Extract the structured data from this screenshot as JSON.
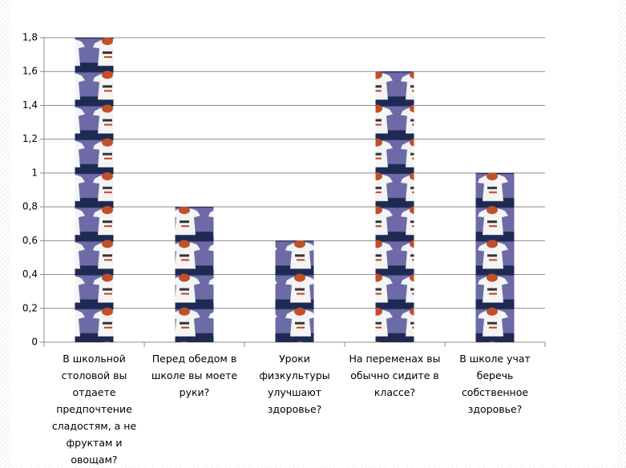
{
  "chart_data": {
    "type": "bar",
    "categories": [
      "В школьной столовой вы отдаете предпочтение сладостям, а не фруктам и овощам?",
      "Перед обедом в школе вы моете руки?",
      "Уроки физкультуры улучшают здоровье?",
      "На переменах вы обычно сидите в классе?",
      "В школе учат беречь собственное здоровье?"
    ],
    "values": [
      1.8,
      0.8,
      0.6,
      1.6,
      1
    ],
    "ylim": [
      0,
      1.8
    ],
    "yticks": [
      0,
      {
        "value": 0.2,
        "label": "0,2"
      },
      {
        "value": 0.4,
        "label": "0,4"
      },
      {
        "value": 0.6,
        "label": "0,6"
      },
      {
        "value": 0.8,
        "label": "0,8"
      },
      1,
      {
        "value": 1.2,
        "label": "1,2"
      },
      {
        "value": 1.4,
        "label": "1,4"
      },
      {
        "value": 1.6,
        "label": "1,6"
      },
      {
        "value": 1.8,
        "label": "1,8"
      }
    ],
    "grid": true
  }
}
